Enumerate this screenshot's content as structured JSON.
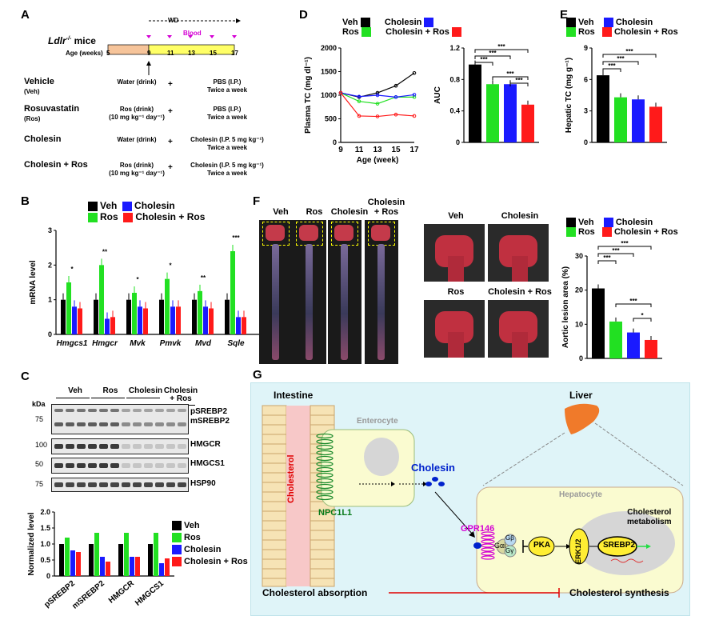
{
  "panels": {
    "A": {
      "letter": "A",
      "mice": "Ldlr",
      "mice_sup": "-/-",
      "mice_suffix": " mice",
      "wd": "WD",
      "blood": "Blood",
      "axis_label": "Age (weeks)",
      "ticks": [
        "5",
        "9",
        "11",
        "13",
        "15",
        "17"
      ],
      "groups": [
        {
          "name": "Vehicle",
          "abbr": "(Veh)",
          "drink": "Water (drink)",
          "ip": "PBS (I.P.)\nTwice a week"
        },
        {
          "name": "Rosuvastatin",
          "abbr": "(Ros)",
          "drink": "Ros (drink)\n(10 mg kg⁻¹ day⁻¹)",
          "ip": "PBS (I.P.)\nTwice a week"
        },
        {
          "name": "Cholesin",
          "abbr": "",
          "drink": "Water (drink)",
          "ip": "Cholesin (I.P. 5 mg kg⁻¹)\nTwice a week"
        },
        {
          "name": "Cholesin + Ros",
          "abbr": "",
          "drink": "Ros (drink)\n(10 mg kg⁻¹ day⁻¹)",
          "ip": "Cholesin (I.P. 5 mg kg⁻¹)\nTwice a week"
        }
      ],
      "plus": "+"
    },
    "B": {
      "letter": "B"
    },
    "C": {
      "letter": "C"
    },
    "D": {
      "letter": "D"
    },
    "E": {
      "letter": "E"
    },
    "F": {
      "letter": "F",
      "photo_labels": [
        "Veh",
        "Ros",
        "Cholesin",
        "Cholesin\n+ Ros"
      ],
      "zoom_labels": [
        "Veh",
        "Cholesin",
        "Ros",
        "Cholesin + Ros"
      ]
    },
    "G": {
      "letter": "G",
      "intestine": "Intestine",
      "liver": "Liver",
      "enterocyte": "Enterocyte",
      "hepatocyte": "Hepatocyte",
      "cholesterol": "Cholesterol",
      "npc1l1": "NPC1L1",
      "cholesin": "Cholesin",
      "gpr146": "GPR146",
      "galpha": "Gαi",
      "gbeta": "Gβ",
      "ggamma": "Gγ",
      "pka": "PKA",
      "erk": "ERK1/2",
      "srebp2": "SREBP2",
      "metabolism": "Cholesterol\nmetabolism",
      "absorption": "Cholesterol absorption",
      "synthesis": "Cholesterol synthesis"
    }
  },
  "colors": {
    "veh": "#000000",
    "ros": "#22e022",
    "chol": "#1a1aff",
    "cr": "#ff1a1a"
  },
  "legend": {
    "veh": "Veh",
    "ros": "Ros",
    "chol": "Cholesin",
    "cr": "Cholesin + Ros"
  },
  "western": {
    "kda": "kDa",
    "groups": [
      "Veh",
      "Ros",
      "Cholesin",
      "Cholesin\n+ Ros"
    ],
    "bands": [
      {
        "label": "pSREBP2\nmSREBP2",
        "kda": "75"
      },
      {
        "label": "HMGCR",
        "kda": "100"
      },
      {
        "label": "HMGCS1",
        "kda": "50"
      },
      {
        "label": "HSP90",
        "kda": "75"
      }
    ]
  },
  "chart_data": [
    {
      "id": "B",
      "type": "bar",
      "ylabel": "mRNA level",
      "ylim": [
        0,
        3
      ],
      "yticks": [
        0,
        1,
        2,
        3
      ],
      "categories": [
        "Hmgcs1",
        "Hmgcr",
        "Mvk",
        "Pmvk",
        "Mvd",
        "Sqle"
      ],
      "series": [
        {
          "name": "Veh",
          "values": [
            1.0,
            1.0,
            1.0,
            1.0,
            1.0,
            1.0
          ]
        },
        {
          "name": "Ros",
          "values": [
            1.5,
            2.0,
            1.2,
            1.6,
            1.25,
            2.4
          ]
        },
        {
          "name": "Cholesin",
          "values": [
            0.8,
            0.45,
            0.8,
            0.8,
            0.8,
            0.5
          ]
        },
        {
          "name": "Cholesin + Ros",
          "values": [
            0.75,
            0.5,
            0.75,
            0.8,
            0.75,
            0.5
          ]
        }
      ],
      "sig": [
        "*",
        "**",
        "*",
        "*",
        "**",
        "***"
      ]
    },
    {
      "id": "C",
      "type": "bar",
      "ylabel": "Normalized level",
      "ylim": [
        0,
        2
      ],
      "yticks": [
        "0",
        "0.5",
        "1.0",
        "1.5",
        "2.0"
      ],
      "categories": [
        "pSREBP2",
        "mSREBP2",
        "HMGCR",
        "HMGCS1"
      ],
      "series": [
        {
          "name": "Veh",
          "values": [
            1.0,
            1.0,
            1.0,
            1.0
          ]
        },
        {
          "name": "Ros",
          "values": [
            1.2,
            1.35,
            1.35,
            1.35
          ]
        },
        {
          "name": "Cholesin",
          "values": [
            0.8,
            0.6,
            0.6,
            0.4
          ]
        },
        {
          "name": "Cholesin + Ros",
          "values": [
            0.75,
            0.45,
            0.6,
            0.55
          ]
        }
      ]
    },
    {
      "id": "D",
      "type": "line",
      "xlabel": "Age (week)",
      "ylabel": "Plasma TC (mg dl⁻¹)",
      "x": [
        9,
        11,
        13,
        15,
        17
      ],
      "ylim": [
        0,
        2000
      ],
      "yticks": [
        0,
        500,
        1000,
        1500,
        2000
      ],
      "series": [
        {
          "name": "Veh",
          "values": [
            1050,
            960,
            1050,
            1200,
            1470
          ]
        },
        {
          "name": "Ros",
          "values": [
            1050,
            870,
            820,
            960,
            960
          ]
        },
        {
          "name": "Cholesin",
          "values": [
            1050,
            970,
            1000,
            960,
            1010
          ]
        },
        {
          "name": "Cholesin + Ros",
          "values": [
            1050,
            560,
            550,
            590,
            560
          ]
        }
      ]
    },
    {
      "id": "D_AUC",
      "type": "bar",
      "ylabel": "AUC",
      "ylim": [
        0,
        1.2
      ],
      "yticks": [
        "0",
        "0.4",
        "0.8",
        "1.2"
      ],
      "categories": [
        "Veh",
        "Ros",
        "Cholesin",
        "Cholesin + Ros"
      ],
      "values": [
        0.99,
        0.74,
        0.74,
        0.48
      ]
    },
    {
      "id": "E",
      "type": "bar",
      "ylabel": "Hepatic TC (mg g⁻¹)",
      "ylim": [
        0,
        9
      ],
      "yticks": [
        0,
        3,
        6,
        9
      ],
      "categories": [
        "Veh",
        "Ros",
        "Cholesin",
        "Cholesin + Ros"
      ],
      "values": [
        6.4,
        4.3,
        4.1,
        3.4
      ]
    },
    {
      "id": "F",
      "type": "bar",
      "ylabel": "Aortic lesion area (%)",
      "ylim": [
        0,
        30
      ],
      "yticks": [
        0,
        10,
        20,
        30
      ],
      "categories": [
        "Veh",
        "Ros",
        "Cholesin",
        "Cholesin + Ros"
      ],
      "values": [
        20.5,
        10.8,
        7.6,
        5.4
      ]
    }
  ]
}
